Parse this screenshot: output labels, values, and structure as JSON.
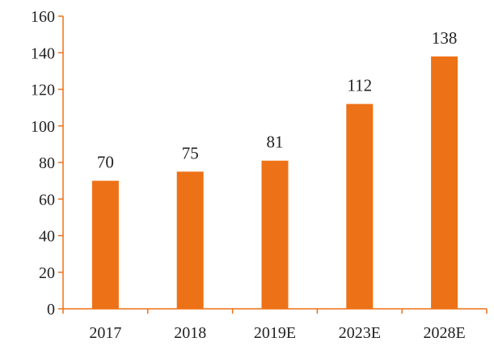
{
  "chart_data": {
    "type": "bar",
    "categories": [
      "2017",
      "2018",
      "2019E",
      "2023E",
      "2028E"
    ],
    "values": [
      70,
      75,
      81,
      112,
      138
    ],
    "data_labels": [
      "70",
      "75",
      "81",
      "112",
      "138"
    ],
    "title": "",
    "xlabel": "",
    "ylabel": "",
    "ylim": [
      0,
      160
    ],
    "yticks": [
      0,
      20,
      40,
      60,
      80,
      100,
      120,
      140,
      160
    ],
    "ytick_labels": [
      "0",
      "20",
      "40",
      "60",
      "80",
      "100",
      "120",
      "140",
      "160"
    ],
    "grid": false,
    "legend": "none",
    "bar_color": "#ED7117",
    "axis_color": "#ED7117"
  }
}
